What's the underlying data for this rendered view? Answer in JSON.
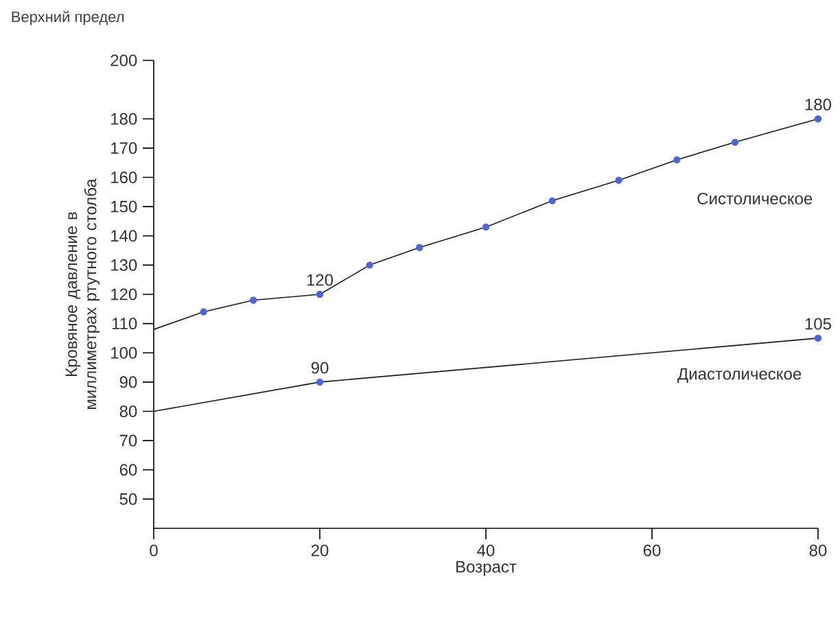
{
  "chart_data": {
    "type": "line",
    "title": "Верхний предел",
    "xlabel": "Возраст",
    "ylabel": "Кровяное давление в миллиметрах ртутного столба",
    "xlim": [
      0,
      80
    ],
    "xticks": [
      0,
      20,
      40,
      60,
      80
    ],
    "ylim": [
      40,
      200
    ],
    "yticks": [
      50,
      60,
      70,
      80,
      90,
      100,
      110,
      120,
      130,
      140,
      150,
      160,
      170,
      180,
      200
    ],
    "grid": false,
    "legend": false,
    "marker": "circle",
    "line_style": "solid",
    "series": [
      {
        "name": "Систолическое",
        "color": "#1a1a1a",
        "x": [
          0,
          6,
          12,
          20,
          26,
          32,
          40,
          48,
          56,
          63,
          70,
          80
        ],
        "values": [
          108,
          114,
          118,
          120,
          130,
          136,
          143,
          152,
          159,
          166,
          172,
          180
        ],
        "value_labels": [
          null,
          null,
          null,
          "120",
          null,
          null,
          null,
          null,
          null,
          null,
          null,
          "180"
        ]
      },
      {
        "name": "Диастолическое",
        "color": "#1a1a1a",
        "x": [
          0,
          20,
          80
        ],
        "values": [
          80,
          90,
          105
        ],
        "value_labels": [
          null,
          "90",
          "105"
        ]
      }
    ]
  }
}
